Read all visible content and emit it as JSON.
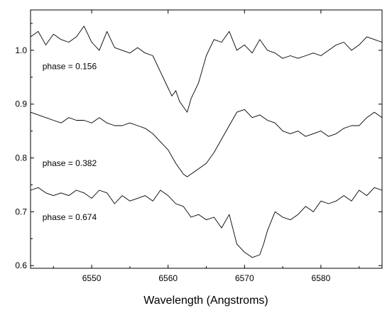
{
  "chart_data": {
    "type": "line",
    "title": "",
    "xlabel": "Wavelength (Angstroms)",
    "ylabel": "",
    "xlim": [
      6542,
      6588
    ],
    "ylim": [
      0.595,
      1.075
    ],
    "x_ticks": [
      {
        "value": 6550,
        "label": "6550"
      },
      {
        "value": 6560,
        "label": "6560"
      },
      {
        "value": 6570,
        "label": "6570"
      },
      {
        "value": 6580,
        "label": "6580"
      }
    ],
    "y_ticks": [
      {
        "value": 0.6,
        "label": "0.6"
      },
      {
        "value": 0.7,
        "label": "0.7"
      },
      {
        "value": 0.8,
        "label": "0.8"
      },
      {
        "value": 0.9,
        "label": "0.9"
      },
      {
        "value": 1.0,
        "label": "1.0"
      }
    ],
    "grid": false,
    "legend": "none",
    "line_color": "#000000",
    "series": [
      {
        "name": "phase = 0.156",
        "label_x": 6543.0,
        "label_y": 0.97,
        "x": [
          6542,
          6543,
          6544,
          6545,
          6546,
          6547,
          6548,
          6549,
          6550,
          6551,
          6552,
          6553,
          6554,
          6555,
          6556,
          6557,
          6558,
          6559,
          6560,
          6560.5,
          6561,
          6561.5,
          6562,
          6562.5,
          6563,
          6563.5,
          6564,
          6565,
          6566,
          6567,
          6568,
          6569,
          6570,
          6571,
          6572,
          6573,
          6574,
          6575,
          6576,
          6577,
          6578,
          6579,
          6580,
          6581,
          6582,
          6583,
          6584,
          6585,
          6586,
          6587,
          6588
        ],
        "y": [
          1.025,
          1.035,
          1.01,
          1.03,
          1.02,
          1.015,
          1.025,
          1.045,
          1.015,
          1.0,
          1.035,
          1.005,
          1.0,
          0.995,
          1.005,
          0.995,
          0.99,
          0.96,
          0.93,
          0.915,
          0.925,
          0.905,
          0.895,
          0.885,
          0.91,
          0.925,
          0.94,
          0.99,
          1.02,
          1.015,
          1.035,
          1.0,
          1.01,
          0.995,
          1.02,
          1.0,
          0.995,
          0.985,
          0.99,
          0.985,
          0.99,
          0.995,
          0.99,
          1.0,
          1.01,
          1.015,
          1.0,
          1.01,
          1.025,
          1.02,
          1.015
        ]
      },
      {
        "name": "phase = 0.382",
        "label_x": 6543.0,
        "label_y": 0.79,
        "x": [
          6542,
          6543,
          6544,
          6545,
          6546,
          6547,
          6548,
          6549,
          6550,
          6551,
          6552,
          6553,
          6554,
          6555,
          6556,
          6557,
          6558,
          6559,
          6560,
          6561,
          6562,
          6562.5,
          6563,
          6564,
          6565,
          6566,
          6567,
          6568,
          6569,
          6570,
          6571,
          6572,
          6573,
          6574,
          6575,
          6576,
          6577,
          6578,
          6579,
          6580,
          6581,
          6582,
          6583,
          6584,
          6585,
          6586,
          6587,
          6588
        ],
        "y": [
          0.885,
          0.88,
          0.875,
          0.87,
          0.865,
          0.875,
          0.87,
          0.87,
          0.865,
          0.875,
          0.865,
          0.86,
          0.86,
          0.865,
          0.86,
          0.855,
          0.845,
          0.83,
          0.815,
          0.79,
          0.77,
          0.765,
          0.77,
          0.78,
          0.79,
          0.81,
          0.835,
          0.86,
          0.885,
          0.89,
          0.875,
          0.88,
          0.87,
          0.865,
          0.85,
          0.845,
          0.85,
          0.84,
          0.845,
          0.85,
          0.84,
          0.845,
          0.855,
          0.86,
          0.86,
          0.875,
          0.885,
          0.875
        ]
      },
      {
        "name": "phase = 0.674",
        "label_x": 6543.0,
        "label_y": 0.69,
        "x": [
          6542,
          6543,
          6544,
          6545,
          6546,
          6547,
          6548,
          6549,
          6550,
          6551,
          6552,
          6553,
          6554,
          6555,
          6556,
          6557,
          6558,
          6559,
          6560,
          6561,
          6562,
          6563,
          6564,
          6565,
          6566,
          6567,
          6568,
          6569,
          6570,
          6571,
          6572,
          6572.5,
          6573,
          6574,
          6575,
          6576,
          6577,
          6578,
          6579,
          6580,
          6581,
          6582,
          6583,
          6584,
          6585,
          6586,
          6587,
          6588
        ],
        "y": [
          0.74,
          0.745,
          0.735,
          0.73,
          0.735,
          0.73,
          0.74,
          0.735,
          0.725,
          0.74,
          0.735,
          0.715,
          0.73,
          0.72,
          0.725,
          0.73,
          0.72,
          0.74,
          0.73,
          0.715,
          0.71,
          0.69,
          0.695,
          0.685,
          0.69,
          0.67,
          0.695,
          0.64,
          0.625,
          0.615,
          0.62,
          0.64,
          0.665,
          0.7,
          0.69,
          0.685,
          0.695,
          0.71,
          0.7,
          0.72,
          0.715,
          0.72,
          0.73,
          0.72,
          0.74,
          0.73,
          0.745,
          0.74
        ]
      }
    ]
  }
}
